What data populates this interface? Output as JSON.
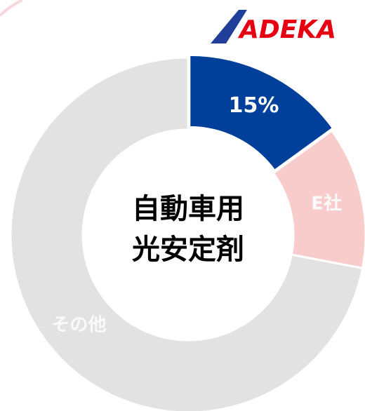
{
  "chart_data": {
    "type": "donut",
    "logo": "ADEKA",
    "title": [
      "自動車用",
      "光安定剤"
    ],
    "categories": [
      null,
      "E社",
      "その他"
    ],
    "values": [
      15,
      13,
      72
    ],
    "value_labels": [
      "15%",
      null,
      null
    ],
    "colors": [
      "#003f9a",
      "#f9cccc",
      "#e2e2e2"
    ]
  }
}
